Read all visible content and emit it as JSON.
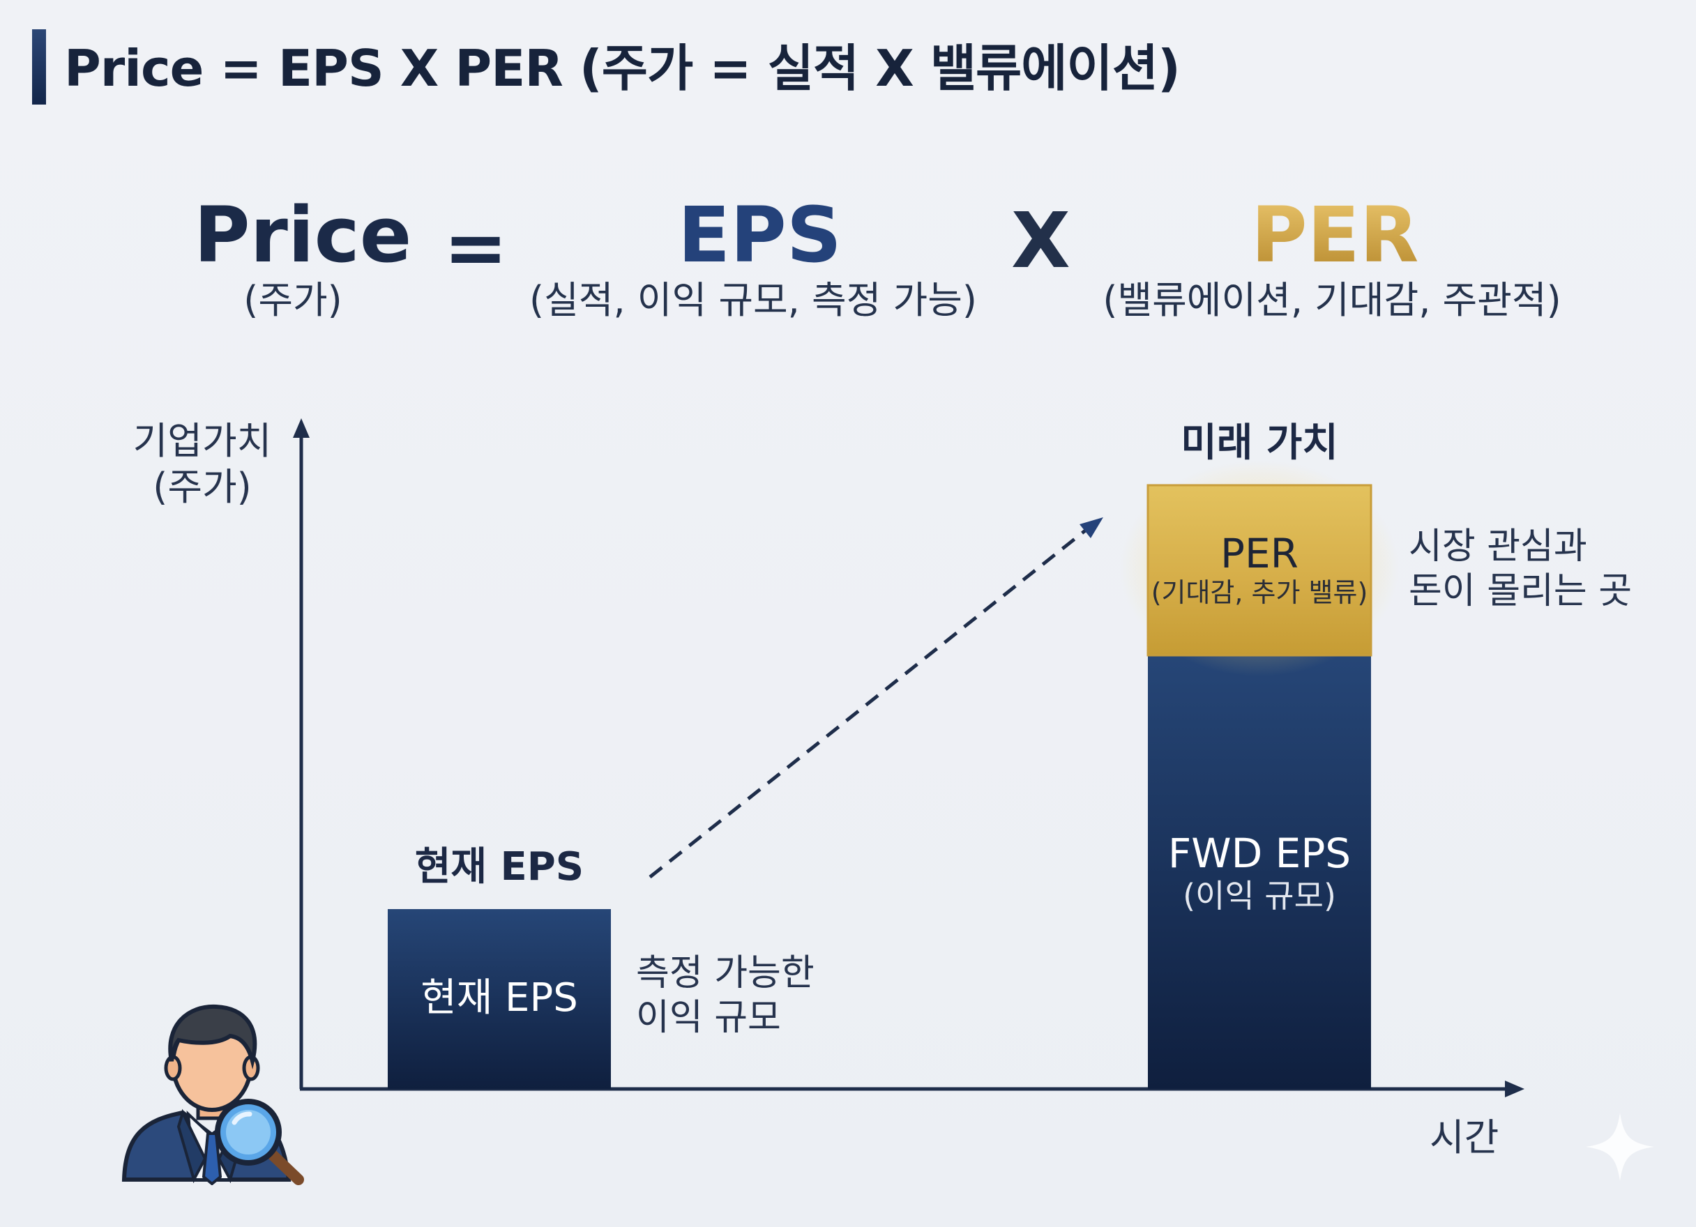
{
  "header": {
    "title": "Price = EPS X PER (주가 = 실적 X 밸류에이션)"
  },
  "formula": {
    "price": {
      "term": "Price",
      "desc": "(주가)"
    },
    "equals": "=",
    "eps": {
      "term": "EPS",
      "desc": "(실적, 이익 규모, 측정 가능)"
    },
    "times": "X",
    "per": {
      "term": "PER",
      "desc": "(밸류에이션, 기대감, 주관적)"
    }
  },
  "diagram": {
    "y_axis_label": [
      "기업가치",
      "(주가)"
    ],
    "x_axis_label": "시간",
    "current": {
      "title": "현재 EPS",
      "bar_label": "현재 EPS",
      "note": [
        "측정 가능한",
        "이익 규모"
      ]
    },
    "future": {
      "title": "미래 가치",
      "per_label": "PER",
      "per_sub": "(기대감, 추가 밸류)",
      "per_note": [
        "시장 관심과",
        "돈이 몰리는 곳"
      ],
      "eps_label": "FWD EPS",
      "eps_sub": "(이익 규모)"
    },
    "colors": {
      "navy": "#1f3a6a",
      "navy_dark": "#0f1f3e",
      "gold": "#d9b655",
      "gold_dark": "#b78f2c",
      "axis": "#1e2d4a"
    },
    "icons": [
      "analyst-avatar-icon",
      "magnifying-glass-icon",
      "sparkle-icon"
    ]
  }
}
